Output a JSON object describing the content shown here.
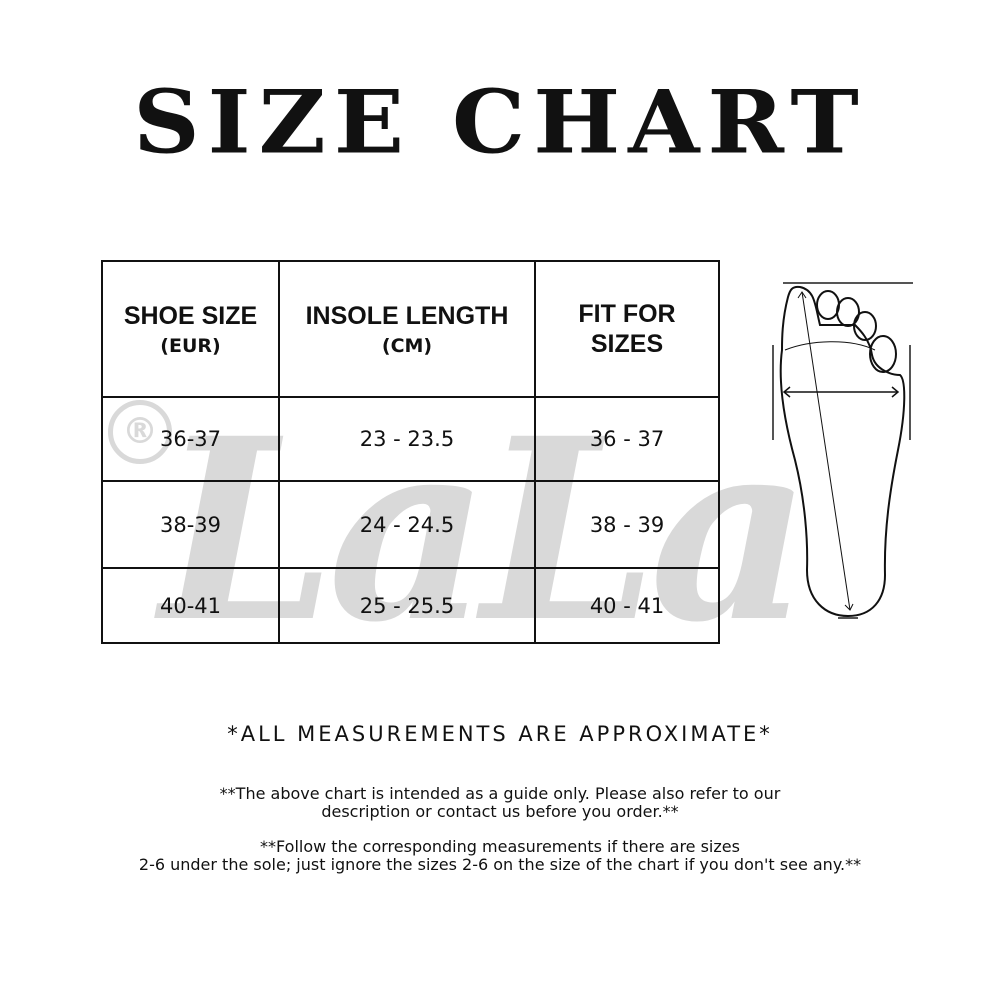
{
  "title": "SIZE CHART",
  "watermark": {
    "text": "LaLa",
    "mark": "®"
  },
  "table": {
    "headers": [
      {
        "main": "SHOE SIZE",
        "sub": "(EUR)"
      },
      {
        "main": "INSOLE LENGTH",
        "sub": "(CM)"
      },
      {
        "main": "FIT FOR SIZES",
        "sub": ""
      }
    ],
    "rows": [
      [
        "36-37",
        "23 - 23.5",
        "36 - 37"
      ],
      [
        "38-39",
        "24 - 24.5",
        "38 - 39"
      ],
      [
        "40-41",
        "25 - 25.5",
        "40 - 41"
      ]
    ]
  },
  "notes": {
    "approx": "*ALL MEASUREMENTS ARE APPROXIMATE*",
    "guide_line1": "**The above chart is intended as a guide only. Please also refer to our",
    "guide_line2": "description or contact us before you order.**",
    "follow_line1": "**Follow the corresponding measurements if there are sizes",
    "follow_line2": "2-6 under the sole; just ignore the sizes 2-6 on the size of the chart if you don't see any.**"
  }
}
